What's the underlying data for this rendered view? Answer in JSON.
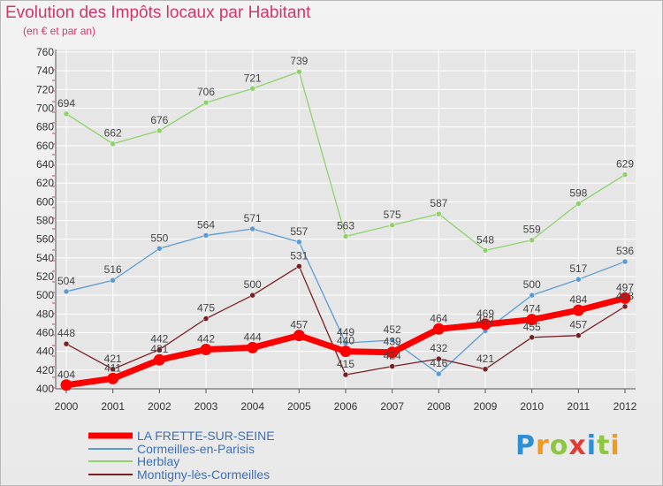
{
  "header": {
    "title": "Evolution des Impôts locaux par Habitant",
    "subtitle": "(en € et par an)"
  },
  "logo": {
    "text": "Proxiti",
    "colors": [
      "#2d8fd6",
      "#f29a1f",
      "#8dc63f",
      "#e23b35",
      "#2d8fd6",
      "#8dc63f",
      "#f29a1f"
    ]
  },
  "colors": {
    "title": "#d2366a",
    "grid": "#ffffff",
    "axis": "#555555",
    "label": "#444444"
  },
  "chart_data": {
    "type": "line",
    "title": "Evolution des Impôts locaux par Habitant",
    "subtitle": "(en € et par an)",
    "xlabel": "",
    "ylabel": "",
    "ylim": [
      400,
      760
    ],
    "yticks": [
      400,
      420,
      440,
      460,
      480,
      500,
      520,
      540,
      560,
      580,
      600,
      620,
      640,
      660,
      680,
      700,
      720,
      740,
      760
    ],
    "x": [
      2000,
      2001,
      2002,
      2003,
      2004,
      2005,
      2006,
      2007,
      2008,
      2009,
      2010,
      2011,
      2012
    ],
    "grid": true,
    "legend_position": "bottom-left",
    "series": [
      {
        "name": "LA FRETTE-SUR-SEINE",
        "color": "#ff0000",
        "values": [
          404,
          411,
          431,
          442,
          444,
          457,
          440,
          439,
          464,
          469,
          474,
          484,
          497
        ],
        "labels": [
          "404",
          "",
          "",
          "442",
          "444",
          "457",
          "",
          "",
          "464",
          "469",
          "474",
          "484",
          "497"
        ]
      },
      {
        "name": "Cormeilles-en-Parisis",
        "color": "#5b9bd5",
        "values": [
          504,
          516,
          550,
          564,
          571,
          557,
          449,
          452,
          416,
          462,
          500,
          517,
          536
        ],
        "labels": [
          "504",
          "516",
          "550",
          "564",
          "571",
          "557",
          "449",
          "452",
          "416",
          "462",
          "500",
          "517",
          "536"
        ]
      },
      {
        "name": "Herblay",
        "color": "#8fd16a",
        "values": [
          694,
          662,
          676,
          706,
          721,
          739,
          563,
          575,
          587,
          548,
          559,
          598,
          629
        ],
        "labels": [
          "694",
          "662",
          "676",
          "706",
          "721",
          "739",
          "563",
          "575",
          "587",
          "548",
          "559",
          "598",
          "629"
        ]
      },
      {
        "name": "Montigny-lès-Cormeilles",
        "color": "#7a1f24",
        "values": [
          448,
          421,
          442,
          475,
          500,
          531,
          415,
          424,
          432,
          421,
          455,
          457,
          488
        ],
        "labels": [
          "448",
          "421",
          "442",
          "475",
          "500",
          "531",
          "415",
          "424",
          "432",
          "421",
          "455",
          "457",
          "488"
        ]
      }
    ],
    "extra_labels": [
      "431",
      "440",
      "439",
      "411"
    ]
  }
}
